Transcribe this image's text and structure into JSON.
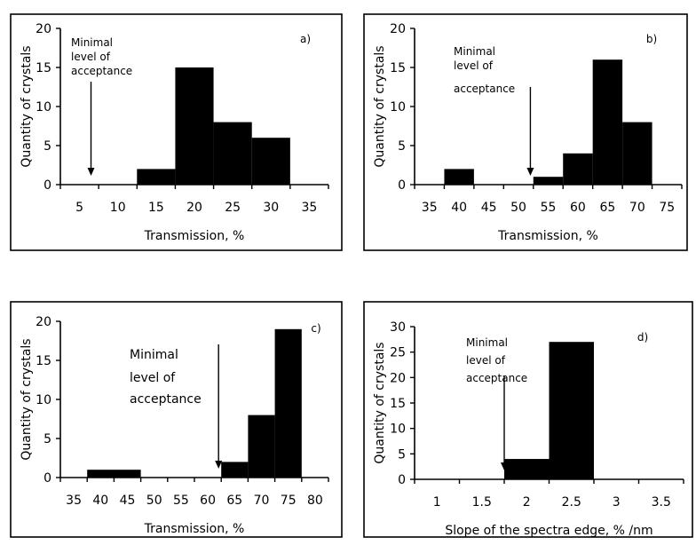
{
  "chart_data": [
    {
      "type": "bar",
      "panel_label": "a)",
      "xlabel": "Transmission, %",
      "ylabel": "Quantity of crystals",
      "xlim": [
        2.5,
        37.5
      ],
      "ylim": [
        0,
        20
      ],
      "x_ticks": [
        "5",
        "10",
        "15",
        "20",
        "25",
        "30",
        "35"
      ],
      "y_ticks": [
        "0",
        "5",
        "10",
        "15",
        "20"
      ],
      "bins": [
        {
          "from": 12.5,
          "to": 17.5,
          "value": 2
        },
        {
          "from": 17.5,
          "to": 22.5,
          "value": 15
        },
        {
          "from": 22.5,
          "to": 27.5,
          "value": 8
        },
        {
          "from": 27.5,
          "to": 32.5,
          "value": 6
        }
      ],
      "annotation": {
        "lines": [
          "Minimal",
          "level of",
          "acceptance"
        ],
        "arrow_x": 6.5
      }
    },
    {
      "type": "bar",
      "panel_label": "b)",
      "xlabel": "Transmission, %",
      "ylabel": "Quantity of crystals",
      "xlim": [
        32.5,
        77.5
      ],
      "ylim": [
        0,
        20
      ],
      "x_ticks": [
        "35",
        "40",
        "45",
        "50",
        "55",
        "60",
        "65",
        "70",
        "75"
      ],
      "y_ticks": [
        "0",
        "5",
        "10",
        "15",
        "20"
      ],
      "bins": [
        {
          "from": 37.5,
          "to": 42.5,
          "value": 2
        },
        {
          "from": 52.5,
          "to": 57.5,
          "value": 1
        },
        {
          "from": 57.5,
          "to": 62.5,
          "value": 4
        },
        {
          "from": 62.5,
          "to": 67.5,
          "value": 16
        },
        {
          "from": 67.5,
          "to": 72.5,
          "value": 8
        }
      ],
      "annotation": {
        "lines": [
          "Minimal",
          "level of",
          "acceptance"
        ],
        "arrow_x": 52
      }
    },
    {
      "type": "bar",
      "panel_label": "c)",
      "xlabel": "Transmission, %",
      "ylabel": "Quantity of crystals",
      "xlim": [
        32.5,
        82.5
      ],
      "ylim": [
        0,
        20
      ],
      "x_ticks": [
        "35",
        "40",
        "45",
        "50",
        "55",
        "60",
        "65",
        "70",
        "75",
        "80"
      ],
      "y_ticks": [
        "0",
        "5",
        "10",
        "15",
        "20"
      ],
      "bins": [
        {
          "from": 37.5,
          "to": 47.5,
          "value": 1
        },
        {
          "from": 62.5,
          "to": 67.5,
          "value": 2
        },
        {
          "from": 67.5,
          "to": 72.5,
          "value": 8
        },
        {
          "from": 72.5,
          "to": 77.5,
          "value": 19
        }
      ],
      "annotation": {
        "lines": [
          "Minimal",
          "level of",
          "acceptance"
        ],
        "arrow_x": 62
      }
    },
    {
      "type": "bar",
      "panel_label": "d)",
      "xlabel": "Slope of the spectra edge, % /nm",
      "ylabel": "Quantity of crystals",
      "xlim": [
        0.75,
        3.75
      ],
      "ylim": [
        0,
        30
      ],
      "x_ticks": [
        "1",
        "1.5",
        "2",
        "2.5",
        "3",
        "3.5"
      ],
      "y_ticks": [
        "0",
        "5",
        "10",
        "15",
        "20",
        "25",
        "30"
      ],
      "bins": [
        {
          "from": 1.75,
          "to": 2.25,
          "value": 4
        },
        {
          "from": 2.25,
          "to": 2.75,
          "value": 27
        }
      ],
      "annotation": {
        "lines": [
          "Minimal",
          "level of",
          "acceptance"
        ],
        "arrow_x": 1.75
      }
    }
  ]
}
